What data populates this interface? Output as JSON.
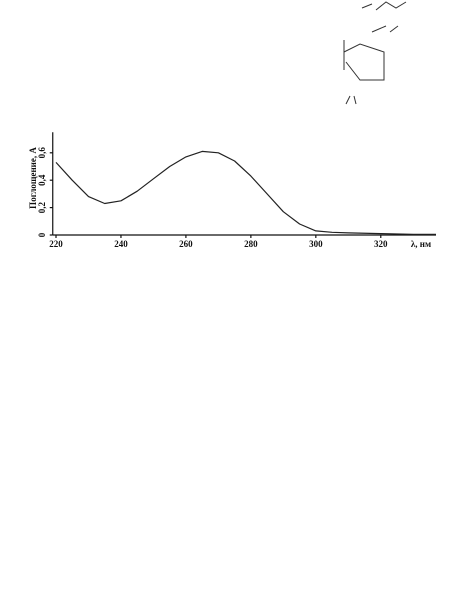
{
  "chart_data": {
    "type": "line",
    "ylabel": "Поглощение, А",
    "xlabel": "λ, нм",
    "x": [
      220,
      225,
      230,
      235,
      240,
      245,
      250,
      255,
      260,
      265,
      270,
      275,
      280,
      285,
      290,
      295,
      300,
      305,
      310,
      320,
      330,
      337
    ],
    "series": [
      {
        "color": "#222222",
        "values": [
          0.53,
          0.4,
          0.28,
          0.23,
          0.25,
          0.32,
          0.41,
          0.5,
          0.57,
          0.61,
          0.6,
          0.54,
          0.43,
          0.3,
          0.17,
          0.08,
          0.03,
          0.02,
          0.015,
          0.01,
          0.005,
          0.005
        ]
      }
    ],
    "xlim": [
      219,
      337
    ],
    "ylim": [
      0,
      0.75
    ],
    "xticks": [
      220,
      240,
      260,
      280,
      300,
      320
    ],
    "yticks": [
      0,
      {
        "value": 0.2,
        "label": "0,2"
      },
      {
        "value": 0.4,
        "label": "0,4"
      },
      {
        "value": 0.6,
        "label": "0,6"
      }
    ]
  }
}
